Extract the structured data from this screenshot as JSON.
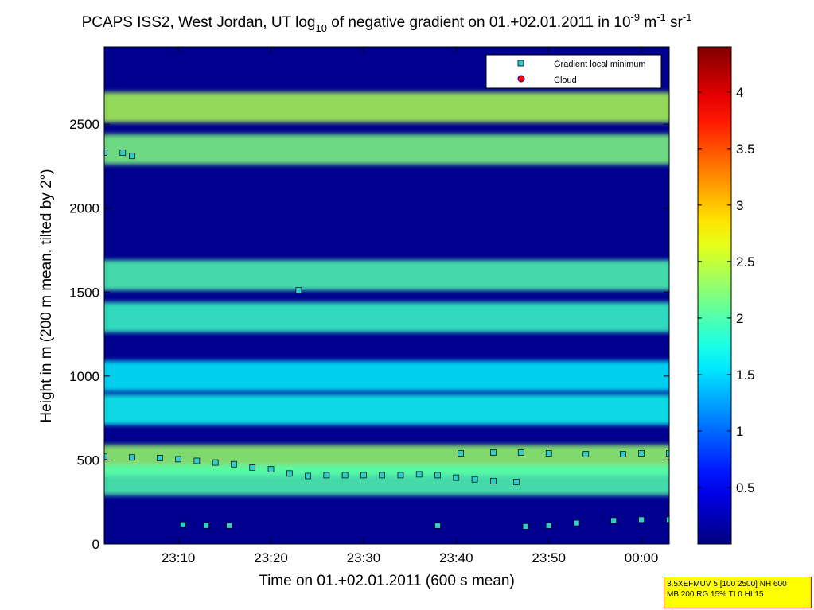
{
  "chart_data": {
    "type": "heatmap",
    "title_parts": [
      "PCAPS ISS2, West Jordan, UT log",
      "10",
      " of negative gradient on 01.+02.01.2011 in 10",
      "-9",
      " m",
      "-1",
      " sr",
      "-1"
    ],
    "xlabel": "Time on 01.+02.01.2011 (600 s mean)",
    "ylabel": "Height in m (200 m mean, tilted by 2°)",
    "x_ticks": [
      "23:10",
      "23:20",
      "23:30",
      "23:40",
      "23:50",
      "00:00"
    ],
    "x_tick_minutes": [
      10,
      20,
      30,
      40,
      50,
      60
    ],
    "xlim_minutes": [
      2,
      63
    ],
    "y_ticks": [
      0,
      500,
      1000,
      1500,
      2000,
      2500
    ],
    "ylim": [
      0,
      2960
    ],
    "colorbar": {
      "ticks": [
        "0.5",
        "1",
        "1.5",
        "2",
        "2.5",
        "3",
        "3.5",
        "4"
      ],
      "tick_values": [
        0.5,
        1,
        1.5,
        2,
        2.5,
        3,
        3.5,
        4
      ],
      "range": [
        0,
        4.4
      ],
      "colormap": "jet"
    },
    "legend": {
      "placement": "top-right",
      "entries": [
        {
          "label": "Gradient local minimum",
          "marker": "square",
          "color": "#33cccc"
        },
        {
          "label": "Cloud",
          "marker": "circle",
          "color": "#ff0000"
        }
      ]
    },
    "layers": [
      {
        "y": 2600,
        "value": 2.4,
        "xs": [
          2,
          63
        ]
      },
      {
        "y": 2350,
        "value": 2.2,
        "xs": [
          2,
          63
        ]
      },
      {
        "y": 1600,
        "value": 2.0,
        "xs": [
          2,
          63
        ]
      },
      {
        "y": 1350,
        "value": 1.9,
        "xs": [
          2,
          63
        ]
      },
      {
        "y": 1000,
        "value": 1.6,
        "xs": [
          2,
          63
        ]
      },
      {
        "y": 800,
        "value": 1.7,
        "xs": [
          2,
          63
        ]
      },
      {
        "y": 500,
        "value": 2.3,
        "xs": [
          2,
          63
        ]
      },
      {
        "y": 380,
        "value": 2.0,
        "xs": [
          2,
          63
        ]
      }
    ],
    "gradient_minimum_series": [
      {
        "name": "lower_inversion_a",
        "points": [
          [
            2,
            520
          ],
          [
            5,
            515
          ],
          [
            8,
            512
          ],
          [
            10,
            505
          ],
          [
            12,
            495
          ],
          [
            14,
            485
          ],
          [
            16,
            475
          ],
          [
            18,
            455
          ],
          [
            20,
            445
          ],
          [
            22,
            420
          ],
          [
            24,
            405
          ],
          [
            26,
            410
          ],
          [
            28,
            410
          ],
          [
            30,
            410
          ],
          [
            32,
            410
          ],
          [
            34,
            410
          ],
          [
            36,
            415
          ],
          [
            38,
            410
          ],
          [
            40,
            395
          ],
          [
            42,
            385
          ],
          [
            44,
            375
          ],
          [
            46.5,
            370
          ]
        ]
      },
      {
        "name": "lower_inversion_b",
        "points": [
          [
            40.5,
            540
          ],
          [
            44,
            545
          ],
          [
            47,
            545
          ],
          [
            50,
            540
          ],
          [
            54,
            535
          ],
          [
            58,
            535
          ],
          [
            60,
            540
          ],
          [
            63,
            540
          ]
        ]
      },
      {
        "name": "surface_layer_a",
        "points": [
          [
            10.5,
            115
          ],
          [
            13,
            110
          ],
          [
            15.5,
            110
          ]
        ]
      },
      {
        "name": "surface_layer_b",
        "points": [
          [
            38,
            110
          ]
        ]
      },
      {
        "name": "surface_layer_c",
        "points": [
          [
            47.5,
            105
          ],
          [
            50,
            110
          ],
          [
            53,
            125
          ],
          [
            57,
            140
          ],
          [
            60,
            145
          ],
          [
            63,
            145
          ]
        ]
      },
      {
        "name": "upper_a",
        "points": [
          [
            2,
            2330
          ],
          [
            4,
            2330
          ],
          [
            5,
            2310
          ]
        ]
      },
      {
        "name": "upper_b",
        "points": [
          [
            23,
            1510
          ]
        ]
      }
    ],
    "cloud_points": []
  },
  "info_box": {
    "line1": "3.5XEFMUV 5 [100 2500] NH 600",
    "line2": "MB 200 RG 15% TI 0 HI 15"
  }
}
